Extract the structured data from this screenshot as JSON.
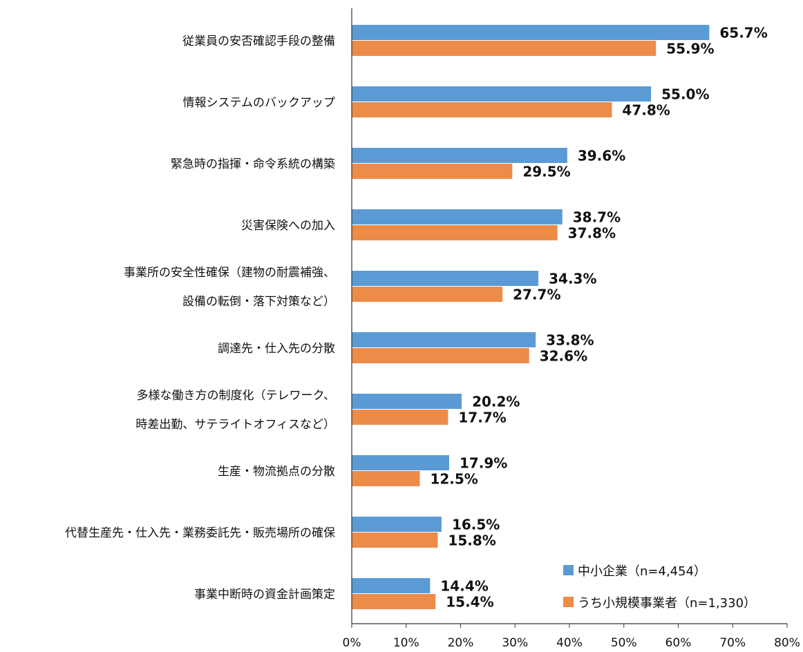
{
  "chart_data": {
    "type": "bar",
    "orientation": "horizontal",
    "categories": [
      [
        "従業員の安否確認手段の整備"
      ],
      [
        "情報システムのバックアップ"
      ],
      [
        "緊急時の指揮・命令系統の構築"
      ],
      [
        "災害保険への加入"
      ],
      [
        "事業所の安全性確保（建物の耐震補強、",
        "設備の転倒・落下対策など）"
      ],
      [
        "調達先・仕入先の分散"
      ],
      [
        "多様な働き方の制度化（テレワーク、",
        "時差出勤、サテライトオフィスなど）"
      ],
      [
        "生産・物流拠点の分散"
      ],
      [
        "代替生産先・仕入先・業務委託先・販売場所の確保"
      ],
      [
        "事業中断時の資金計画策定"
      ]
    ],
    "series": [
      {
        "name": "中小企業（n=4,454）",
        "color": "#5B9BD5",
        "values": [
          65.7,
          55.0,
          39.6,
          38.7,
          34.3,
          33.8,
          20.2,
          17.9,
          16.5,
          14.4
        ]
      },
      {
        "name": "うち小規模事業者（n=1,330）",
        "color": "#ED8B48",
        "values": [
          55.9,
          47.8,
          29.5,
          37.8,
          27.7,
          32.6,
          17.7,
          12.5,
          15.8,
          15.4
        ]
      }
    ],
    "xlim": [
      0,
      80
    ],
    "xticks": [
      "0%",
      "10%",
      "20%",
      "30%",
      "40%",
      "50%",
      "60%",
      "70%",
      "80%"
    ],
    "grid": false,
    "legend": "bottom-right",
    "value_format": "percent-1dp"
  }
}
